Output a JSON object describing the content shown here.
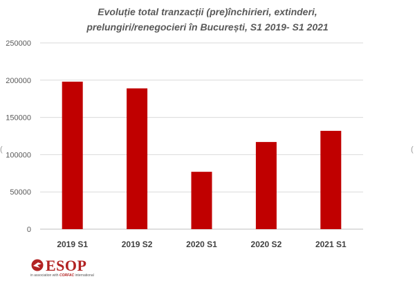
{
  "chart_data": {
    "type": "bar",
    "title_lines": [
      "Evoluție total tranzacții (pre)închirieri, extinderi,",
      "prelungiri/renegocieri în București, S1 2019- S1 2021"
    ],
    "categories": [
      "2019 S1",
      "2019 S2",
      "2020 S1",
      "2020 S2",
      "2021 S1"
    ],
    "series": [
      {
        "values": [
          198000,
          189000,
          77000,
          117000,
          132000
        ]
      }
    ],
    "ylim": [
      0,
      250000
    ],
    "yticks": [
      "0",
      "50000",
      "100000",
      "150000",
      "200000",
      "250000"
    ],
    "bar_color": "#c00000",
    "grid": true,
    "legend": "none"
  },
  "logo": {
    "text": "ESOP",
    "tagline_prefix": "in association with",
    "tagline_brand": "CORFAC",
    "tagline_suffix": "international",
    "color": "#b22222"
  }
}
